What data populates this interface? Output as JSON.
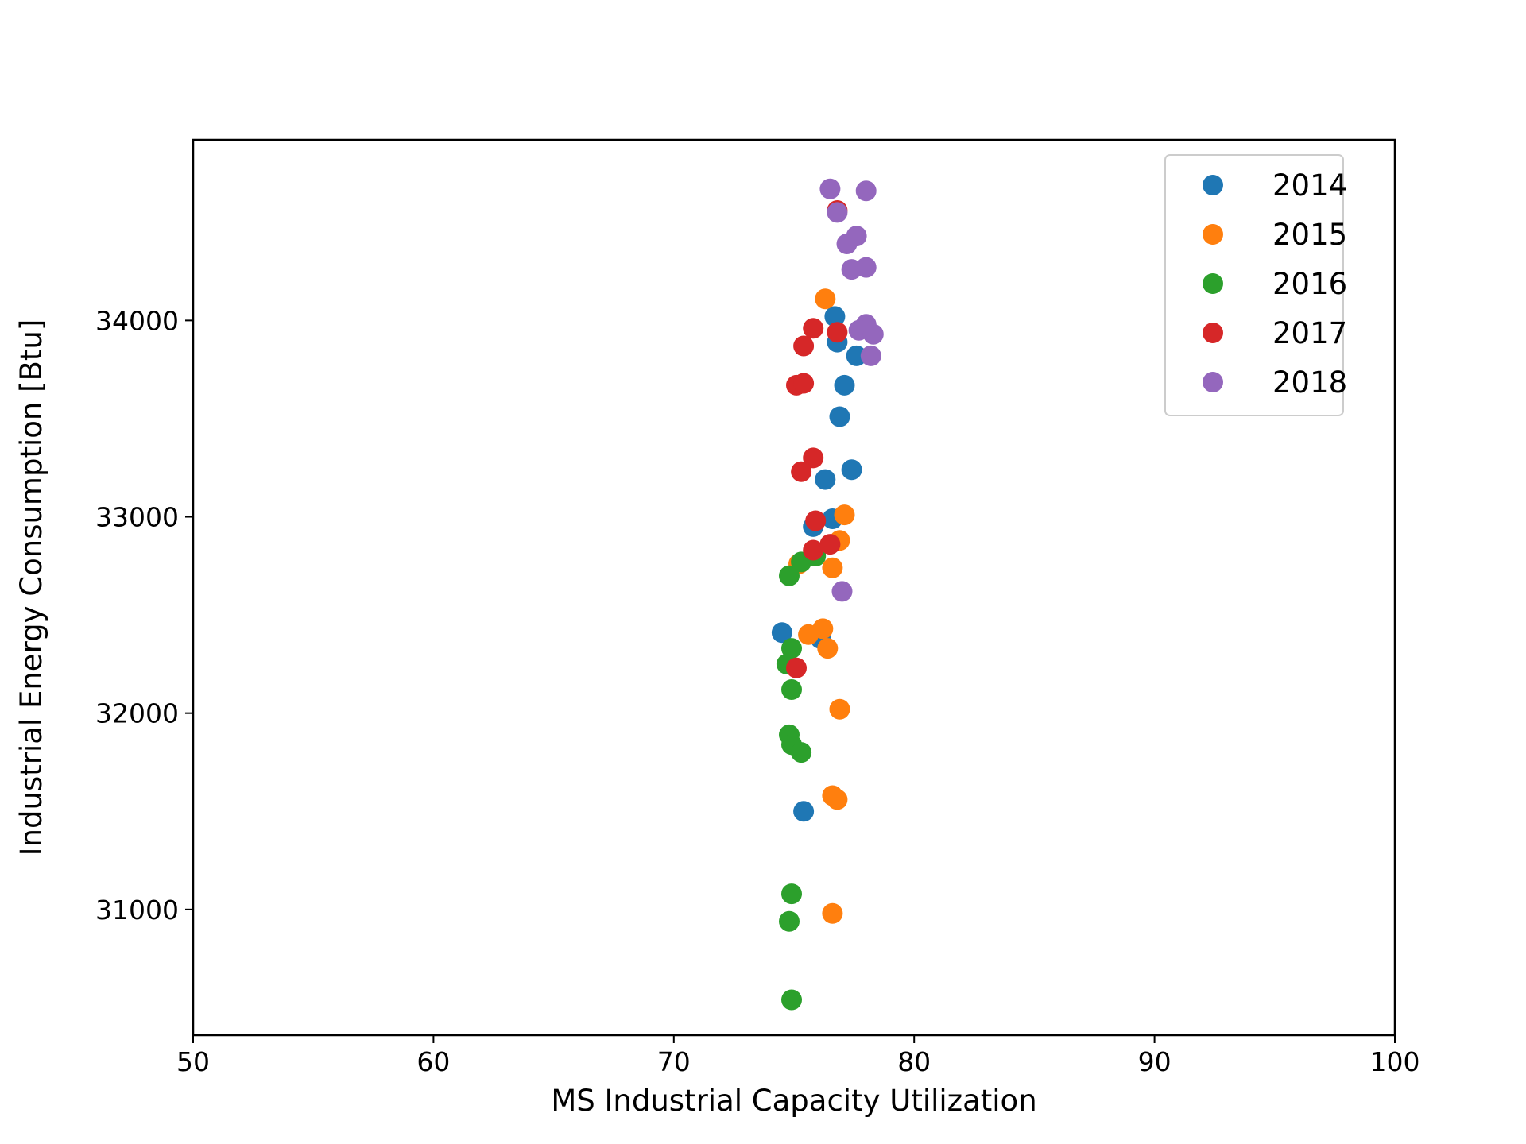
{
  "chart_data": {
    "type": "scatter",
    "title": "",
    "xlabel": "MS Industrial Capacity Utilization",
    "ylabel": "Industrial Energy Consumption [Btu]",
    "xlim": [
      50,
      100
    ],
    "ylim": [
      30360,
      34920
    ],
    "xticks": [
      50,
      60,
      70,
      80,
      90,
      100
    ],
    "yticks": [
      31000,
      32000,
      33000,
      34000
    ],
    "grid": false,
    "legend_position": "top-right",
    "series": [
      {
        "name": "2014",
        "color": "#1f77b4",
        "points": [
          [
            74.5,
            32410
          ],
          [
            75.4,
            31500
          ],
          [
            76.3,
            33190
          ],
          [
            77.4,
            33240
          ],
          [
            76.9,
            33510
          ],
          [
            77.1,
            33670
          ],
          [
            77.6,
            33820
          ],
          [
            76.8,
            33890
          ],
          [
            76.7,
            34020
          ],
          [
            75.8,
            32950
          ],
          [
            76.6,
            32990
          ],
          [
            75.9,
            32820
          ],
          [
            76.1,
            32380
          ]
        ]
      },
      {
        "name": "2015",
        "color": "#ff7f0e",
        "points": [
          [
            76.3,
            34110
          ],
          [
            77.1,
            33010
          ],
          [
            76.9,
            32880
          ],
          [
            76.6,
            32740
          ],
          [
            75.6,
            32400
          ],
          [
            76.2,
            32430
          ],
          [
            76.4,
            32330
          ],
          [
            76.9,
            32020
          ],
          [
            76.6,
            31580
          ],
          [
            76.8,
            31560
          ],
          [
            76.6,
            30980
          ],
          [
            75.2,
            32760
          ]
        ]
      },
      {
        "name": "2016",
        "color": "#2ca02c",
        "points": [
          [
            74.8,
            32700
          ],
          [
            75.3,
            32770
          ],
          [
            74.9,
            32330
          ],
          [
            74.7,
            32250
          ],
          [
            74.9,
            32120
          ],
          [
            74.8,
            31890
          ],
          [
            74.9,
            31840
          ],
          [
            75.3,
            31800
          ],
          [
            74.9,
            31080
          ],
          [
            74.8,
            30940
          ],
          [
            74.9,
            30540
          ],
          [
            75.9,
            32800
          ]
        ]
      },
      {
        "name": "2017",
        "color": "#d62728",
        "points": [
          [
            75.1,
            33670
          ],
          [
            75.4,
            33680
          ],
          [
            75.4,
            33870
          ],
          [
            75.8,
            33960
          ],
          [
            76.8,
            33940
          ],
          [
            75.8,
            33300
          ],
          [
            75.3,
            33230
          ],
          [
            75.9,
            32980
          ],
          [
            75.8,
            32830
          ],
          [
            76.5,
            32860
          ],
          [
            75.1,
            32230
          ],
          [
            76.8,
            34560
          ]
        ]
      },
      {
        "name": "2018",
        "color": "#9467bd",
        "points": [
          [
            76.5,
            34670
          ],
          [
            78.0,
            34660
          ],
          [
            76.8,
            34550
          ],
          [
            77.2,
            34390
          ],
          [
            77.6,
            34430
          ],
          [
            77.4,
            34260
          ],
          [
            78.0,
            34270
          ],
          [
            78.0,
            33980
          ],
          [
            77.7,
            33950
          ],
          [
            78.3,
            33930
          ],
          [
            78.2,
            33820
          ],
          [
            77.0,
            32620
          ]
        ]
      }
    ]
  }
}
